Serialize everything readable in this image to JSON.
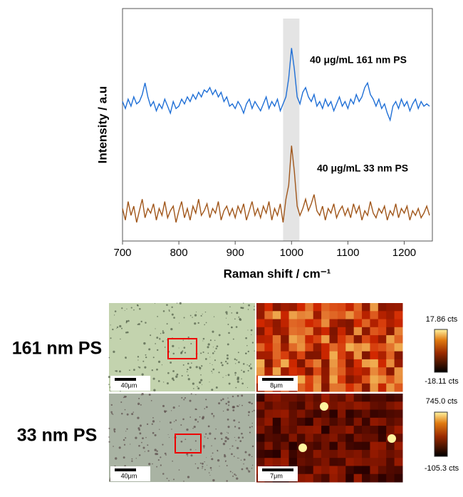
{
  "chart_data": {
    "type": "line",
    "xlabel": "Raman shift / cm⁻¹",
    "ylabel": "Intensity / a.u",
    "xlim": [
      700,
      1250
    ],
    "xticks": [
      700,
      800,
      900,
      1000,
      1100,
      1200
    ],
    "ylim": [
      0,
      100
    ],
    "highlight": [
      985,
      1014
    ],
    "annotations": [
      "40 μg/mL 161 nm PS",
      "40 μg/mL 33 nm PS"
    ],
    "x": [
      700,
      705,
      710,
      715,
      720,
      725,
      730,
      735,
      740,
      745,
      750,
      755,
      760,
      765,
      770,
      775,
      780,
      785,
      790,
      795,
      800,
      805,
      810,
      815,
      820,
      825,
      830,
      835,
      840,
      845,
      850,
      855,
      860,
      865,
      870,
      875,
      880,
      885,
      890,
      895,
      900,
      905,
      910,
      915,
      920,
      925,
      930,
      935,
      940,
      945,
      950,
      955,
      960,
      965,
      970,
      975,
      980,
      985,
      990,
      995,
      1000,
      1005,
      1010,
      1015,
      1020,
      1025,
      1030,
      1035,
      1040,
      1045,
      1050,
      1055,
      1060,
      1065,
      1070,
      1075,
      1080,
      1085,
      1090,
      1095,
      1100,
      1105,
      1110,
      1115,
      1120,
      1125,
      1130,
      1135,
      1140,
      1145,
      1150,
      1155,
      1160,
      1165,
      1170,
      1175,
      1180,
      1185,
      1190,
      1195,
      1200,
      1205,
      1210,
      1215,
      1220,
      1225,
      1230,
      1235,
      1240,
      1245
    ],
    "series": [
      {
        "color": "#1f6fd6",
        "values": [
          60,
          57,
          61,
          58,
          62,
          59,
          60,
          63,
          68,
          62,
          58,
          60,
          56,
          59,
          57,
          61,
          58,
          55,
          60,
          57,
          58,
          61,
          59,
          62,
          60,
          63,
          61,
          64,
          62,
          65,
          64,
          66,
          63,
          65,
          62,
          64,
          60,
          62,
          58,
          59,
          57,
          60,
          58,
          55,
          59,
          61,
          57,
          60,
          58,
          56,
          59,
          62,
          57,
          60,
          58,
          61,
          56,
          59,
          62,
          70,
          83,
          74,
          62,
          59,
          64,
          66,
          62,
          60,
          63,
          58,
          60,
          57,
          61,
          58,
          60,
          56,
          59,
          62,
          58,
          60,
          57,
          61,
          59,
          63,
          60,
          62,
          66,
          68,
          63,
          61,
          58,
          61,
          57,
          59,
          55,
          52,
          58,
          60,
          57,
          61,
          58,
          60,
          56,
          59,
          61,
          57,
          60,
          58,
          59,
          58
        ]
      },
      {
        "color": "#a0561a",
        "values": [
          14,
          9,
          17,
          11,
          15,
          8,
          13,
          18,
          10,
          14,
          12,
          16,
          9,
          14,
          11,
          17,
          10,
          13,
          15,
          8,
          13,
          17,
          10,
          14,
          9,
          15,
          12,
          18,
          11,
          13,
          16,
          10,
          14,
          12,
          17,
          9,
          13,
          15,
          11,
          14,
          10,
          15,
          12,
          16,
          9,
          13,
          17,
          11,
          14,
          10,
          15,
          12,
          17,
          9,
          14,
          11,
          16,
          8,
          18,
          24,
          41,
          30,
          15,
          11,
          14,
          18,
          13,
          16,
          20,
          13,
          11,
          15,
          9,
          14,
          12,
          16,
          10,
          13,
          15,
          11,
          14,
          10,
          16,
          12,
          15,
          9,
          13,
          11,
          17,
          12,
          10,
          14,
          12,
          15,
          9,
          13,
          11,
          16,
          10,
          14,
          12,
          15,
          9,
          13,
          11,
          14,
          10,
          12,
          15,
          11
        ]
      }
    ]
  },
  "panels": [
    {
      "label": "161 nm PS",
      "optical_scale": "40μm",
      "map_scale": "8μm",
      "cbar_max": "17.86 cts",
      "cbar_min": "-18.11 cts"
    },
    {
      "label": "33 nm PS",
      "optical_scale": "40μm",
      "map_scale": "7μm",
      "cbar_max": "745.0 cts",
      "cbar_min": "-105.3 cts"
    }
  ]
}
